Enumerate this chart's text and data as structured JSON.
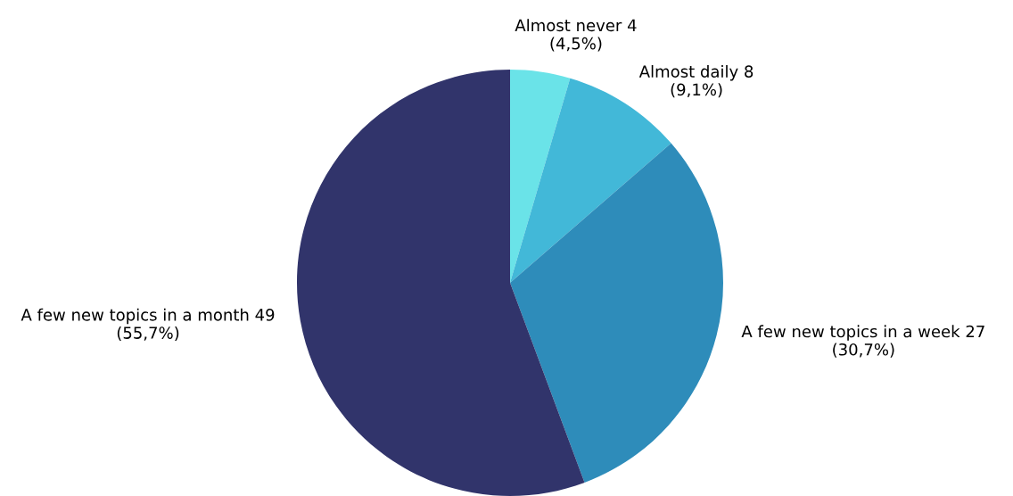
{
  "chart_data": {
    "type": "pie",
    "categories": [
      "Almost never",
      "Almost daily",
      "A few new topics in a week",
      "A few new topics in a month"
    ],
    "values": [
      4,
      8,
      27,
      49
    ],
    "value_labels": [
      "4\n(4,5%)",
      "8\n(9,1%)",
      "27\n(30,7%)",
      "49\n(55,7%)"
    ],
    "colors": [
      "#6ae3e8",
      "#42b8d8",
      "#2e8cba",
      "#31346b"
    ]
  }
}
